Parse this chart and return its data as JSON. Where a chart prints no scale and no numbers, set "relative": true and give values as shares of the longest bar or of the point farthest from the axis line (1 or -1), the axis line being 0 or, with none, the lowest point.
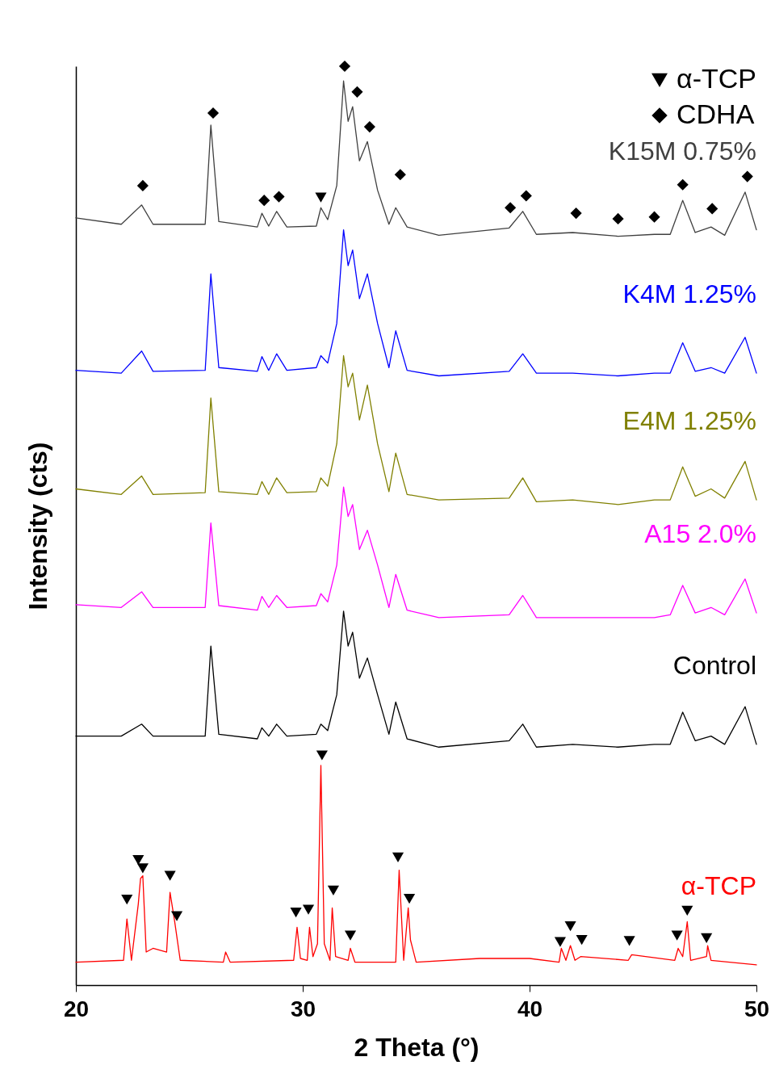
{
  "chart_data": {
    "type": "line",
    "relative": true,
    "xlabel": "2 Theta (°)",
    "ylabel": "Intensity (cts)",
    "xlim": [
      20,
      50
    ],
    "xticks": [
      20,
      30,
      40,
      50
    ],
    "legend": "top right",
    "tick_labels": "x",
    "x": [
      20,
      22,
      22.9,
      23.4,
      25.7,
      25.95,
      26.3,
      28,
      28.2,
      28.5,
      28.85,
      29.3,
      30.6,
      30.8,
      31.1,
      31.5,
      31.8,
      32.0,
      32.2,
      32.5,
      32.85,
      33.3,
      33.8,
      34.1,
      34.6,
      36,
      39.1,
      39.7,
      40.3,
      41.9,
      43.9,
      45.5,
      46.2,
      46.75,
      47.3,
      48.0,
      48.6,
      49.5,
      50
    ],
    "series": [
      {
        "name": "K15M 0.75%",
        "color": "#404040",
        "values": [
          0.835,
          0.828,
          0.849,
          0.828,
          0.828,
          0.936,
          0.831,
          0.825,
          0.84,
          0.826,
          0.842,
          0.825,
          0.826,
          0.846,
          0.833,
          0.87,
          0.984,
          0.94,
          0.956,
          0.897,
          0.918,
          0.865,
          0.828,
          0.846,
          0.825,
          0.816,
          0.824,
          0.842,
          0.817,
          0.819,
          0.815,
          0.817,
          0.817,
          0.854,
          0.819,
          0.825,
          0.816,
          0.863,
          0.822
        ]
      },
      {
        "name": "K4M 1.25%",
        "color": "#0000ff",
        "values": [
          0.669,
          0.666,
          0.69,
          0.668,
          0.669,
          0.774,
          0.672,
          0.668,
          0.684,
          0.669,
          0.687,
          0.669,
          0.672,
          0.685,
          0.677,
          0.72,
          0.822,
          0.783,
          0.8,
          0.747,
          0.774,
          0.72,
          0.672,
          0.712,
          0.669,
          0.663,
          0.668,
          0.687,
          0.666,
          0.666,
          0.663,
          0.666,
          0.666,
          0.699,
          0.668,
          0.672,
          0.666,
          0.705,
          0.666
        ]
      },
      {
        "name": "E4M 1.25%",
        "color": "#808000",
        "values": [
          0.54,
          0.534,
          0.554,
          0.534,
          0.536,
          0.639,
          0.537,
          0.534,
          0.548,
          0.534,
          0.552,
          0.536,
          0.537,
          0.552,
          0.543,
          0.589,
          0.685,
          0.651,
          0.666,
          0.615,
          0.653,
          0.589,
          0.537,
          0.579,
          0.534,
          0.528,
          0.53,
          0.552,
          0.526,
          0.528,
          0.523,
          0.528,
          0.528,
          0.564,
          0.532,
          0.54,
          0.53,
          0.57,
          0.528
        ]
      },
      {
        "name": "A15 2.0%",
        "color": "#ff00ff",
        "values": [
          0.414,
          0.411,
          0.428,
          0.411,
          0.411,
          0.503,
          0.413,
          0.408,
          0.423,
          0.411,
          0.424,
          0.411,
          0.413,
          0.426,
          0.417,
          0.457,
          0.542,
          0.51,
          0.523,
          0.474,
          0.495,
          0.457,
          0.411,
          0.447,
          0.408,
          0.4,
          0.403,
          0.424,
          0.4,
          0.4,
          0.4,
          0.4,
          0.403,
          0.435,
          0.405,
          0.411,
          0.403,
          0.442,
          0.405
        ]
      },
      {
        "name": "Control",
        "color": "#000000",
        "values": [
          0.271,
          0.271,
          0.284,
          0.271,
          0.271,
          0.369,
          0.273,
          0.268,
          0.28,
          0.271,
          0.284,
          0.271,
          0.273,
          0.284,
          0.277,
          0.316,
          0.407,
          0.369,
          0.384,
          0.334,
          0.356,
          0.316,
          0.273,
          0.308,
          0.268,
          0.259,
          0.266,
          0.284,
          0.259,
          0.262,
          0.259,
          0.262,
          0.262,
          0.297,
          0.266,
          0.271,
          0.262,
          0.303,
          0.262
        ]
      },
      {
        "name": "α-TCP",
        "color": "#ff0000",
        "x": [
          20,
          22.1,
          22.25,
          22.45,
          22.75,
          22.85,
          22.95,
          23.1,
          23.4,
          24.0,
          24.15,
          24.35,
          24.6,
          26.5,
          26.6,
          26.8,
          29.6,
          29.75,
          29.9,
          30.2,
          30.3,
          30.45,
          30.65,
          30.8,
          30.95,
          31.2,
          31.3,
          31.45,
          32.0,
          32.1,
          32.3,
          34.1,
          34.25,
          34.45,
          34.65,
          34.75,
          35.0,
          37.8,
          40,
          41.3,
          41.4,
          41.6,
          41.8,
          42.0,
          42.25,
          44.35,
          44.5,
          46.4,
          46.55,
          46.75,
          46.95,
          47.1,
          47.8,
          47.85,
          48.0,
          50
        ],
        "values": [
          0.025,
          0.027,
          0.072,
          0.027,
          0.088,
          0.116,
          0.119,
          0.036,
          0.04,
          0.036,
          0.101,
          0.07,
          0.027,
          0.025,
          0.036,
          0.025,
          0.027,
          0.063,
          0.029,
          0.027,
          0.063,
          0.031,
          0.045,
          0.239,
          0.045,
          0.027,
          0.084,
          0.031,
          0.027,
          0.04,
          0.025,
          0.025,
          0.125,
          0.027,
          0.084,
          0.049,
          0.025,
          0.029,
          0.029,
          0.025,
          0.04,
          0.027,
          0.043,
          0.027,
          0.031,
          0.027,
          0.033,
          0.027,
          0.04,
          0.031,
          0.069,
          0.027,
          0.031,
          0.043,
          0.027,
          0.022
        ]
      },
      {
        "name": "α-TCP",
        "type": "scatter",
        "marker": "triangle",
        "color": "#000000",
        "x": [
          30.8,
          22.25,
          22.75,
          22.95,
          24.15,
          24.45,
          29.7,
          30.25,
          30.85,
          31.35,
          32.1,
          34.2,
          34.7,
          41.35,
          41.8,
          42.3,
          44.4,
          46.5,
          46.95,
          47.8
        ],
        "values": [
          0.857,
          0.093,
          0.136,
          0.127,
          0.119,
          0.075,
          0.079,
          0.082,
          0.25,
          0.103,
          0.054,
          0.139,
          0.094,
          0.047,
          0.064,
          0.049,
          0.048,
          0.054,
          0.081,
          0.051
        ]
      },
      {
        "name": "CDHA",
        "type": "scatter",
        "marker": "diamond",
        "color": "#000000",
        "x": [
          22.95,
          26.05,
          28.3,
          28.95,
          31.85,
          32.4,
          32.95,
          34.3,
          39.15,
          39.85,
          42.05,
          43.9,
          45.5,
          46.75,
          48.05,
          49.6
        ],
        "values": [
          0.87,
          0.949,
          0.854,
          0.858,
          1,
          0.972,
          0.934,
          0.882,
          0.846,
          0.859,
          0.84,
          0.834,
          0.836,
          0.871,
          0.845,
          0.88
        ]
      }
    ]
  }
}
